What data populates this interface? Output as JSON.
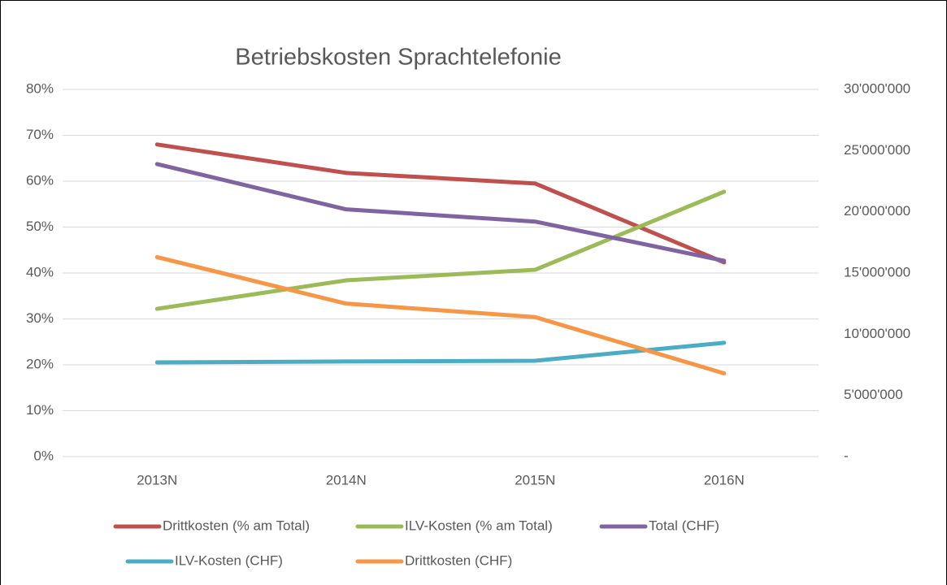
{
  "chart_data": {
    "type": "line",
    "title": "Betriebskosten Sprachtelefonie",
    "categories": [
      "2013N",
      "2014N",
      "2015N",
      "2016N"
    ],
    "series": [
      {
        "name": "Drittkosten (% am Total)",
        "color": "#c0504d",
        "axis": "y",
        "values": [
          68.0,
          61.8,
          59.5,
          42.3
        ]
      },
      {
        "name": "ILV-Kosten (% am Total)",
        "color": "#9bbb59",
        "axis": "y",
        "values": [
          32.2,
          38.4,
          40.7,
          57.7
        ]
      },
      {
        "name": "Total (CHF)",
        "color": "#8064a2",
        "axis": "y2",
        "values": [
          23900000,
          20200000,
          19200000,
          16000000
        ]
      },
      {
        "name": "ILV-Kosten (CHF)",
        "color": "#4bacc6",
        "axis": "y2",
        "values": [
          7700000,
          7770000,
          7830000,
          9300000
        ]
      },
      {
        "name": "Drittkosten (CHF)",
        "color": "#f79646",
        "axis": "y2",
        "values": [
          16300000,
          12500000,
          11400000,
          6800000
        ]
      }
    ],
    "ylim": [
      0,
      80
    ],
    "yticks": [
      {
        "value": 0,
        "label": "0%"
      },
      {
        "value": 10,
        "label": "10%"
      },
      {
        "value": 20,
        "label": "20%"
      },
      {
        "value": 30,
        "label": "30%"
      },
      {
        "value": 40,
        "label": "40%"
      },
      {
        "value": 50,
        "label": "50%"
      },
      {
        "value": 60,
        "label": "60%"
      },
      {
        "value": 70,
        "label": "70%"
      },
      {
        "value": 80,
        "label": "80%"
      }
    ],
    "y2lim": [
      0,
      30000000
    ],
    "y2ticks": [
      {
        "value": 0,
        "label": "-"
      },
      {
        "value": 5000000,
        "label": "5'000'000"
      },
      {
        "value": 10000000,
        "label": "10'000'000"
      },
      {
        "value": 15000000,
        "label": "15'000'000"
      },
      {
        "value": 20000000,
        "label": "20'000'000"
      },
      {
        "value": 25000000,
        "label": "25'000'000"
      },
      {
        "value": 30000000,
        "label": "30'000'000"
      }
    ],
    "grid": true,
    "legend": "bottom"
  }
}
